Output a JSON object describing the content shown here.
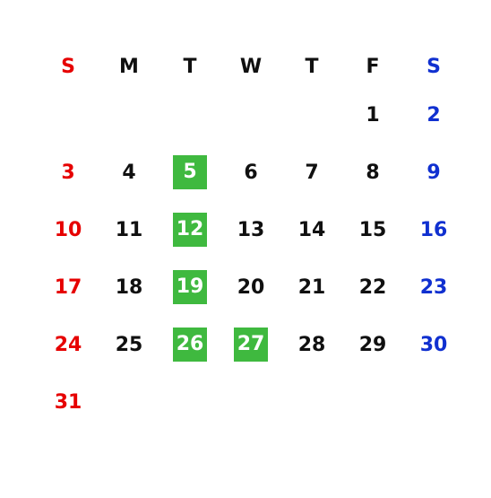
{
  "calendar": {
    "background_color": "#ffffff",
    "sunday_color": "#e60000",
    "saturday_color": "#1030d0",
    "weekday_color": "#101010",
    "highlight_bg": "#3fb93f",
    "highlight_fg": "#ffffff",
    "header": [
      "S",
      "M",
      "T",
      "W",
      "T",
      "F",
      "S"
    ],
    "weeks": [
      [
        {
          "n": "",
          "t": "empty"
        },
        {
          "n": "",
          "t": "empty"
        },
        {
          "n": "",
          "t": "empty"
        },
        {
          "n": "",
          "t": "empty"
        },
        {
          "n": "",
          "t": "empty"
        },
        {
          "n": "1",
          "t": "wd"
        },
        {
          "n": "2",
          "t": "sat"
        }
      ],
      [
        {
          "n": "3",
          "t": "sun"
        },
        {
          "n": "4",
          "t": "wd"
        },
        {
          "n": "5",
          "t": "hl"
        },
        {
          "n": "6",
          "t": "wd"
        },
        {
          "n": "7",
          "t": "wd"
        },
        {
          "n": "8",
          "t": "wd"
        },
        {
          "n": "9",
          "t": "sat"
        }
      ],
      [
        {
          "n": "10",
          "t": "sun"
        },
        {
          "n": "11",
          "t": "wd"
        },
        {
          "n": "12",
          "t": "hl"
        },
        {
          "n": "13",
          "t": "wd"
        },
        {
          "n": "14",
          "t": "wd"
        },
        {
          "n": "15",
          "t": "wd"
        },
        {
          "n": "16",
          "t": "sat"
        }
      ],
      [
        {
          "n": "17",
          "t": "sun"
        },
        {
          "n": "18",
          "t": "wd"
        },
        {
          "n": "19",
          "t": "hl"
        },
        {
          "n": "20",
          "t": "wd"
        },
        {
          "n": "21",
          "t": "wd"
        },
        {
          "n": "22",
          "t": "wd"
        },
        {
          "n": "23",
          "t": "sat"
        }
      ],
      [
        {
          "n": "24",
          "t": "sun"
        },
        {
          "n": "25",
          "t": "wd"
        },
        {
          "n": "26",
          "t": "hl"
        },
        {
          "n": "27",
          "t": "hl"
        },
        {
          "n": "28",
          "t": "wd"
        },
        {
          "n": "29",
          "t": "wd"
        },
        {
          "n": "30",
          "t": "sat"
        }
      ],
      [
        {
          "n": "31",
          "t": "sun"
        },
        {
          "n": "",
          "t": "empty"
        },
        {
          "n": "",
          "t": "empty"
        },
        {
          "n": "",
          "t": "empty"
        },
        {
          "n": "",
          "t": "empty"
        },
        {
          "n": "",
          "t": "empty"
        },
        {
          "n": "",
          "t": "empty"
        }
      ]
    ]
  }
}
